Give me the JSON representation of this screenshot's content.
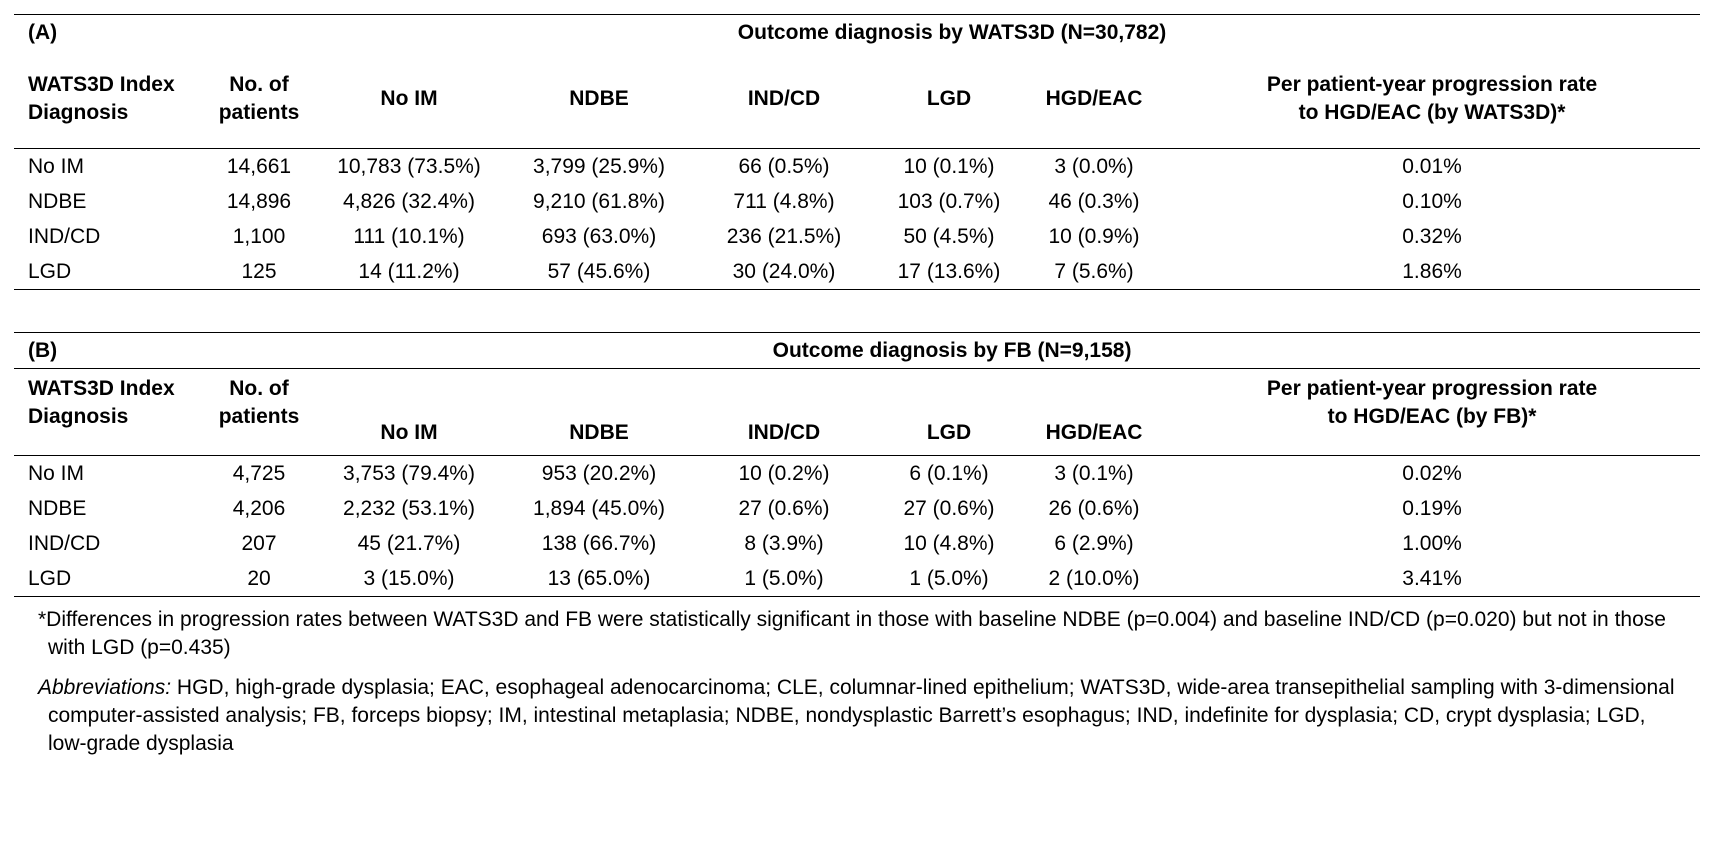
{
  "table_a": {
    "label": "(A)",
    "title": "Outcome diagnosis by WATS3D (N=30,782)",
    "headers": [
      "WATS3D Index Diagnosis",
      "No. of patients",
      "No IM",
      "NDBE",
      "IND/CD",
      "LGD",
      "HGD/EAC",
      "Per patient-year progression rate to HGD/EAC (by WATS3D)*"
    ],
    "header_lines": {
      "c0": [
        "WATS3D Index",
        "Diagnosis"
      ],
      "c1": [
        "No. of",
        "patients"
      ],
      "c7": [
        "Per patient-year progression rate",
        "to HGD/EAC (by WATS3D)*"
      ]
    },
    "rows": [
      [
        "No IM",
        "14,661",
        "10,783 (73.5%)",
        "3,799 (25.9%)",
        "66 (0.5%)",
        "10 (0.1%)",
        "3 (0.0%)",
        "0.01%"
      ],
      [
        "NDBE",
        "14,896",
        "4,826 (32.4%)",
        "9,210 (61.8%)",
        "711 (4.8%)",
        "103 (0.7%)",
        "46 (0.3%)",
        "0.10%"
      ],
      [
        "IND/CD",
        "1,100",
        "111 (10.1%)",
        "693 (63.0%)",
        "236 (21.5%)",
        "50 (4.5%)",
        "10 (0.9%)",
        "0.32%"
      ],
      [
        "LGD",
        "125",
        "14 (11.2%)",
        "57 (45.6%)",
        "30 (24.0%)",
        "17 (13.6%)",
        "7 (5.6%)",
        "1.86%"
      ]
    ]
  },
  "table_b": {
    "label": "(B)",
    "title": "Outcome diagnosis by FB (N=9,158)",
    "headers": [
      "WATS3D Index Diagnosis",
      "No. of patients",
      "No IM",
      "NDBE",
      "IND/CD",
      "LGD",
      "HGD/EAC",
      "Per patient-year progression rate to HGD/EAC (by FB)*"
    ],
    "header_lines": {
      "c0": [
        "WATS3D Index",
        "Diagnosis"
      ],
      "c1": [
        "No. of",
        "patients"
      ],
      "c7": [
        "Per patient-year progression rate",
        "to HGD/EAC (by FB)*"
      ]
    },
    "rows": [
      [
        "No IM",
        "4,725",
        "3,753 (79.4%)",
        "953 (20.2%)",
        "10 (0.2%)",
        "6 (0.1%)",
        "3 (0.1%)",
        "0.02%"
      ],
      [
        "NDBE",
        "4,206",
        "2,232 (53.1%)",
        "1,894 (45.0%)",
        "27 (0.6%)",
        "27 (0.6%)",
        "26 (0.6%)",
        "0.19%"
      ],
      [
        "IND/CD",
        "207",
        "45 (21.7%)",
        "138 (66.7%)",
        "8 (3.9%)",
        "10 (4.8%)",
        "6 (2.9%)",
        "1.00%"
      ],
      [
        "LGD",
        "20",
        "3 (15.0%)",
        "13 (65.0%)",
        "1 (5.0%)",
        "1 (5.0%)",
        "2 (10.0%)",
        "3.41%"
      ]
    ]
  },
  "footnote": "*Differences in progression rates between WATS3D and FB were statistically significant in those with baseline NDBE (p=0.004) and baseline IND/CD (p=0.020) but not in those with LGD (p=0.435)",
  "abbreviations": {
    "label": "Abbreviations:",
    "text": " HGD, high-grade dysplasia; EAC, esophageal adenocarcinoma; CLE, columnar-lined epithelium; WATS3D, wide-area transepithelial sampling with 3-dimensional computer-assisted analysis; FB, forceps biopsy; IM, intestinal metaplasia; NDBE, nondysplastic Barrett’s esophagus; IND, indefinite for dysplasia; CD, crypt dysplasia; LGD, low-grade dysplasia"
  }
}
